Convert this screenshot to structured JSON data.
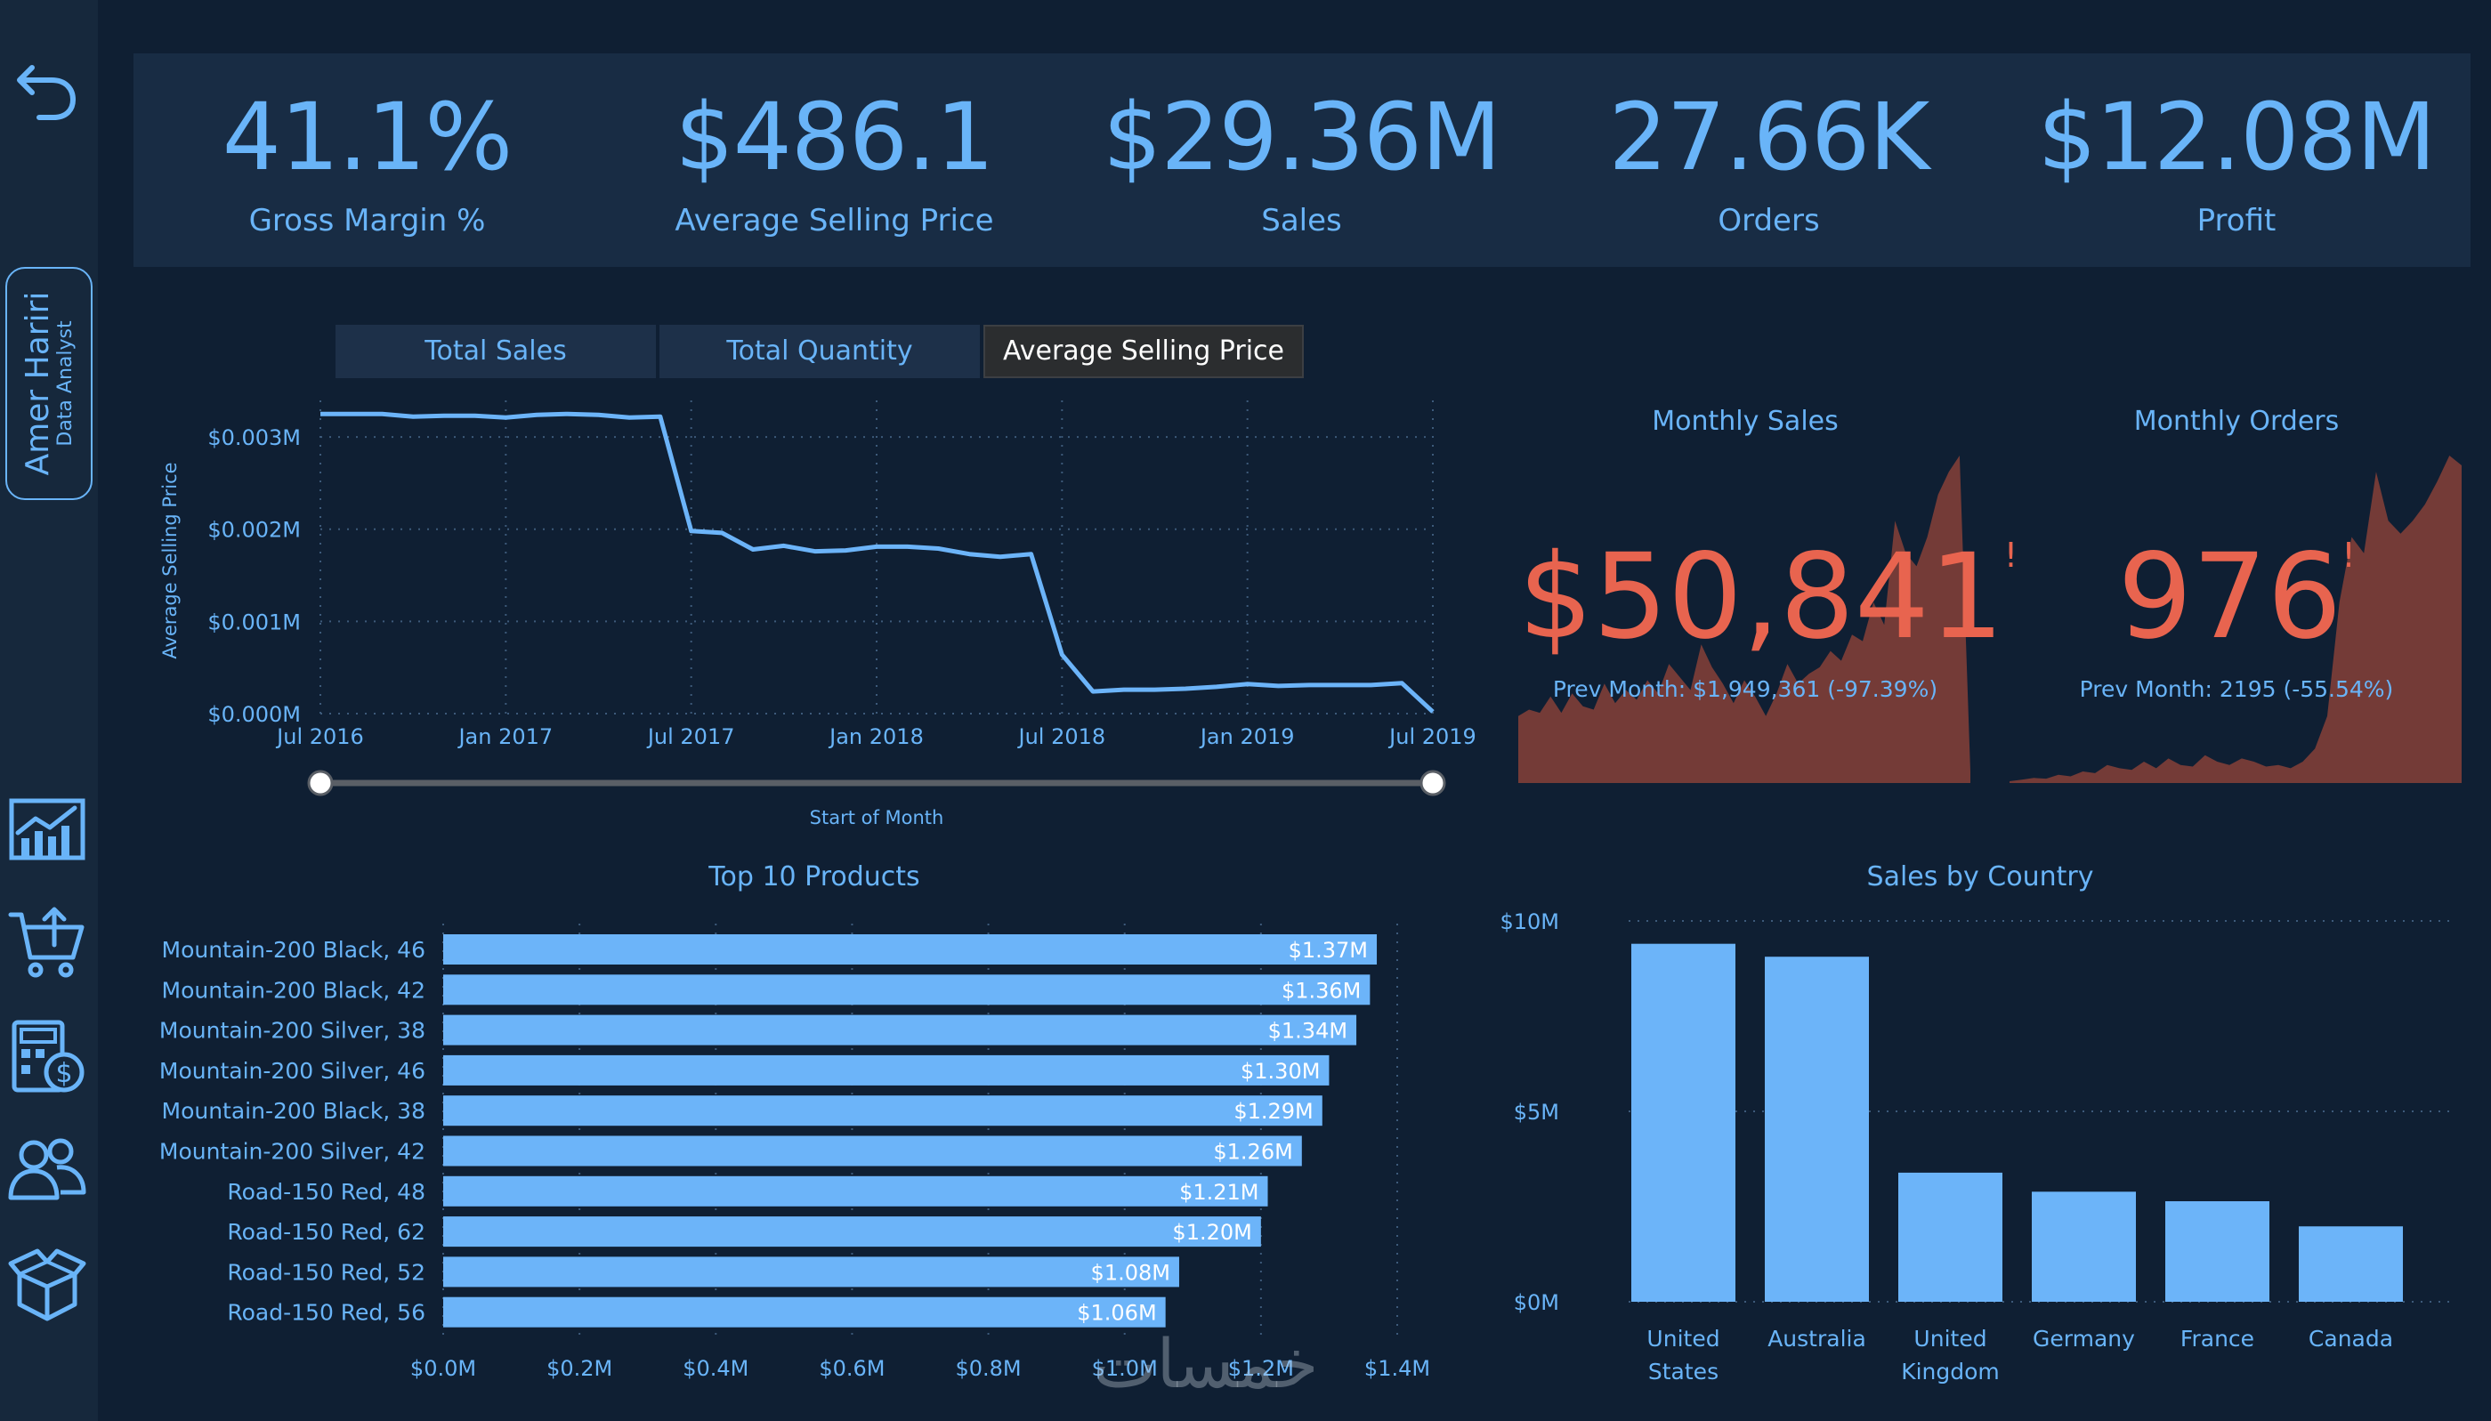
{
  "profile": {
    "name": "Amer Hariri",
    "role": "Data Analyst"
  },
  "kpis": [
    {
      "value": "41.1%",
      "label": "Gross Margin %"
    },
    {
      "value": "$486.1",
      "label": "Average Selling Price"
    },
    {
      "value": "$29.36M",
      "label": "Sales"
    },
    {
      "value": "27.66K",
      "label": "Orders"
    },
    {
      "value": "$12.08M",
      "label": "Profit"
    }
  ],
  "tabs": [
    {
      "label": "Total Sales"
    },
    {
      "label": "Total Quantity"
    },
    {
      "label": "Average Selling Price",
      "active": true
    }
  ],
  "trend": {
    "slider_label": "Start of Month"
  },
  "monthly_sales": {
    "title": "Monthly Sales",
    "value": "$50,841",
    "flag": "!",
    "prev": "Prev Month: $1,949,361 (-97.39%)"
  },
  "monthly_orders": {
    "title": "Monthly Orders",
    "value": "976",
    "flag": "!",
    "prev": "Prev Month: 2195 (-55.54%)"
  },
  "watermark": "خمسات",
  "colors": {
    "accent": "#69b4f8",
    "bar": "#6cb4f9",
    "alert": "#e8644f",
    "area": "#7a3d38",
    "background": "#0f1f33",
    "band": "#182c44"
  },
  "icons": [
    "undo-arrow-icon",
    "line-chart-icon",
    "shopping-cart-icon",
    "calculator-dollar-icon",
    "users-icon",
    "open-box-icon"
  ],
  "chart_data": [
    {
      "type": "line",
      "ylabel": "Average Selling Price",
      "xlabel": "Start of Month",
      "x_ticks": [
        "Jul 2016",
        "Jan 2017",
        "Jul 2017",
        "Jan 2018",
        "Jul 2018",
        "Jan 2019",
        "Jul 2019"
      ],
      "y_ticks": [
        "$0.000M",
        "$0.001M",
        "$0.002M",
        "$0.003M"
      ],
      "ylim": [
        0,
        0.0033
      ],
      "grid": true,
      "x": [
        "2016-07",
        "2016-08",
        "2016-09",
        "2016-10",
        "2016-11",
        "2016-12",
        "2017-01",
        "2017-02",
        "2017-03",
        "2017-04",
        "2017-05",
        "2017-06",
        "2017-07",
        "2017-08",
        "2017-09",
        "2017-10",
        "2017-11",
        "2017-12",
        "2018-01",
        "2018-02",
        "2018-03",
        "2018-04",
        "2018-05",
        "2018-06",
        "2018-07",
        "2018-08",
        "2018-09",
        "2018-10",
        "2018-11",
        "2018-12",
        "2019-01",
        "2019-02",
        "2019-03",
        "2019-04",
        "2019-05",
        "2019-06",
        "2019-07"
      ],
      "series": [
        {
          "values": [
            0.00325,
            0.00325,
            0.00325,
            0.00322,
            0.00323,
            0.00323,
            0.00321,
            0.00324,
            0.00325,
            0.00324,
            0.00321,
            0.00322,
            0.00198,
            0.00196,
            0.00178,
            0.00182,
            0.00176,
            0.00177,
            0.00181,
            0.00181,
            0.00179,
            0.00173,
            0.0017,
            0.00173,
            0.00064,
            0.00024,
            0.00026,
            0.00026,
            0.00027,
            0.00029,
            0.00032,
            0.0003,
            0.00031,
            0.00031,
            0.00031,
            0.00033,
            2e-05
          ]
        }
      ]
    },
    {
      "type": "bar",
      "orientation": "horizontal",
      "title": "Top 10 Products",
      "categories": [
        "Mountain-200 Black, 46",
        "Mountain-200 Black, 42",
        "Mountain-200 Silver, 38",
        "Mountain-200 Silver, 46",
        "Mountain-200 Black, 38",
        "Mountain-200 Silver, 42",
        "Road-150 Red, 48",
        "Road-150 Red, 62",
        "Road-150 Red, 52",
        "Road-150 Red, 56"
      ],
      "values": [
        1.37,
        1.36,
        1.34,
        1.3,
        1.29,
        1.26,
        1.21,
        1.2,
        1.08,
        1.06
      ],
      "data_labels": [
        "$1.37M",
        "$1.36M",
        "$1.34M",
        "$1.30M",
        "$1.29M",
        "$1.26M",
        "$1.21M",
        "$1.20M",
        "$1.08M",
        "$1.06M"
      ],
      "x_ticks": [
        "$0.0M",
        "$0.2M",
        "$0.4M",
        "$0.6M",
        "$0.8M",
        "$1.0M",
        "$1.2M",
        "$1.4M"
      ],
      "xlim": [
        0,
        1.4
      ],
      "grid": true
    },
    {
      "type": "bar",
      "title": "Sales by Country",
      "categories": [
        "United States",
        "Australia",
        "United Kingdom",
        "Germany",
        "France",
        "Canada"
      ],
      "category_lines": [
        [
          "United",
          "States"
        ],
        [
          "Australia"
        ],
        [
          "United",
          "Kingdom"
        ],
        [
          "Germany"
        ],
        [
          "France"
        ],
        [
          "Canada"
        ]
      ],
      "values": [
        9.4,
        9.06,
        3.39,
        2.89,
        2.64,
        1.98
      ],
      "y_ticks": [
        "$0M",
        "$5M",
        "$10M"
      ],
      "ylim": [
        0,
        10
      ],
      "grid": true
    },
    {
      "type": "area",
      "title": "Monthly Sales",
      "values": [
        0.2,
        0.22,
        0.21,
        0.26,
        0.21,
        0.27,
        0.23,
        0.22,
        0.3,
        0.24,
        0.28,
        0.25,
        0.31,
        0.27,
        0.36,
        0.32,
        0.28,
        0.42,
        0.35,
        0.3,
        0.24,
        0.31,
        0.26,
        0.2,
        0.27,
        0.36,
        0.3,
        0.33,
        0.35,
        0.4,
        0.37,
        0.45,
        0.43,
        0.55,
        0.48,
        0.8,
        0.7,
        0.66,
        0.75,
        0.88,
        0.95,
        1.0,
        0.03
      ]
    },
    {
      "type": "area",
      "title": "Monthly Orders",
      "values": [
        0.0,
        0.005,
        0.01,
        0.008,
        0.02,
        0.015,
        0.03,
        0.025,
        0.05,
        0.04,
        0.035,
        0.06,
        0.04,
        0.07,
        0.05,
        0.045,
        0.08,
        0.06,
        0.05,
        0.07,
        0.06,
        0.045,
        0.05,
        0.04,
        0.06,
        0.1,
        0.2,
        0.55,
        0.75,
        0.7,
        0.95,
        0.8,
        0.76,
        0.8,
        0.85,
        0.92,
        1.0,
        0.97
      ]
    }
  ]
}
